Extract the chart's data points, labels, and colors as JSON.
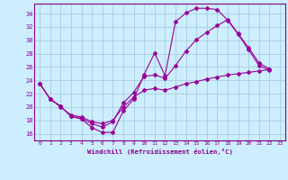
{
  "xlabel": "Windchill (Refroidissement éolien,°C)",
  "bg_color": "#cceeff",
  "grid_color": "#aaccdd",
  "line_color": "#990099",
  "x_ticks": [
    0,
    1,
    2,
    3,
    4,
    5,
    6,
    7,
    8,
    9,
    10,
    11,
    12,
    13,
    14,
    15,
    16,
    17,
    18,
    19,
    20,
    21,
    22,
    23
  ],
  "y_ticks": [
    16,
    18,
    20,
    22,
    24,
    26,
    28,
    30,
    32,
    34
  ],
  "xlim": [
    -0.5,
    23.5
  ],
  "ylim": [
    15.0,
    35.5
  ],
  "curve_a_x": [
    0,
    1,
    2,
    3,
    4,
    5,
    6,
    7,
    8,
    9,
    10,
    11,
    12,
    13,
    14,
    15,
    16,
    17,
    18,
    19,
    20,
    21,
    22
  ],
  "curve_a_y": [
    23.5,
    21.2,
    20.1,
    18.6,
    18.2,
    16.9,
    16.2,
    16.2,
    19.4,
    21.2,
    24.9,
    28.1,
    24.7,
    32.8,
    34.1,
    34.8,
    34.8,
    34.6,
    33.0,
    30.9,
    28.6,
    26.2,
    25.5
  ],
  "curve_b_x": [
    0,
    1,
    2,
    3,
    4,
    5,
    6,
    7,
    8,
    9,
    10,
    11,
    12,
    13,
    14,
    15,
    16,
    17,
    18,
    19,
    20,
    21,
    22
  ],
  "curve_b_y": [
    23.5,
    21.2,
    20.1,
    18.6,
    18.3,
    17.5,
    17.0,
    17.8,
    20.6,
    22.2,
    24.6,
    24.8,
    24.3,
    26.2,
    28.4,
    30.1,
    31.2,
    32.2,
    33.1,
    31.0,
    28.9,
    26.6,
    25.7
  ],
  "curve_c_x": [
    0,
    1,
    2,
    3,
    4,
    5,
    6,
    7,
    8,
    9,
    10,
    11,
    12,
    13,
    14,
    15,
    16,
    17,
    18,
    19,
    20,
    21,
    22
  ],
  "curve_c_y": [
    23.5,
    21.2,
    20.0,
    18.8,
    18.5,
    17.8,
    17.5,
    18.0,
    20.0,
    21.5,
    22.5,
    22.8,
    22.5,
    23.0,
    23.5,
    23.8,
    24.2,
    24.5,
    24.8,
    25.0,
    25.2,
    25.4,
    25.6
  ]
}
